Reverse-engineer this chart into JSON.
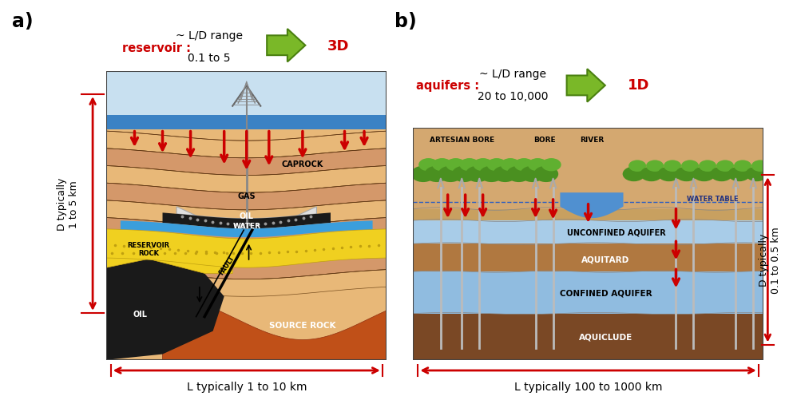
{
  "panel_a_label": "a)",
  "panel_b_label": "b)",
  "panel_a_annotation1_red": "reservoir :",
  "panel_a_annotation2": "~ L/D range\n0.1 to 5",
  "panel_a_arrow_label": "3D",
  "panel_b_annotation1_red": "aquifers :",
  "panel_b_annotation2": "~ L/D range\n20 to 10,000",
  "panel_b_arrow_label": "1D",
  "label_L_a": "L typically 1 to 10 km",
  "label_L_b": "L typically 100 to 1000 km",
  "label_D_a": "D typically\n1 to 5 km",
  "label_D_b": "D typically\n0.1 to 0.5 km",
  "bg_color": "#ffffff",
  "red_color": "#cc0000",
  "green_color": "#6ab023"
}
